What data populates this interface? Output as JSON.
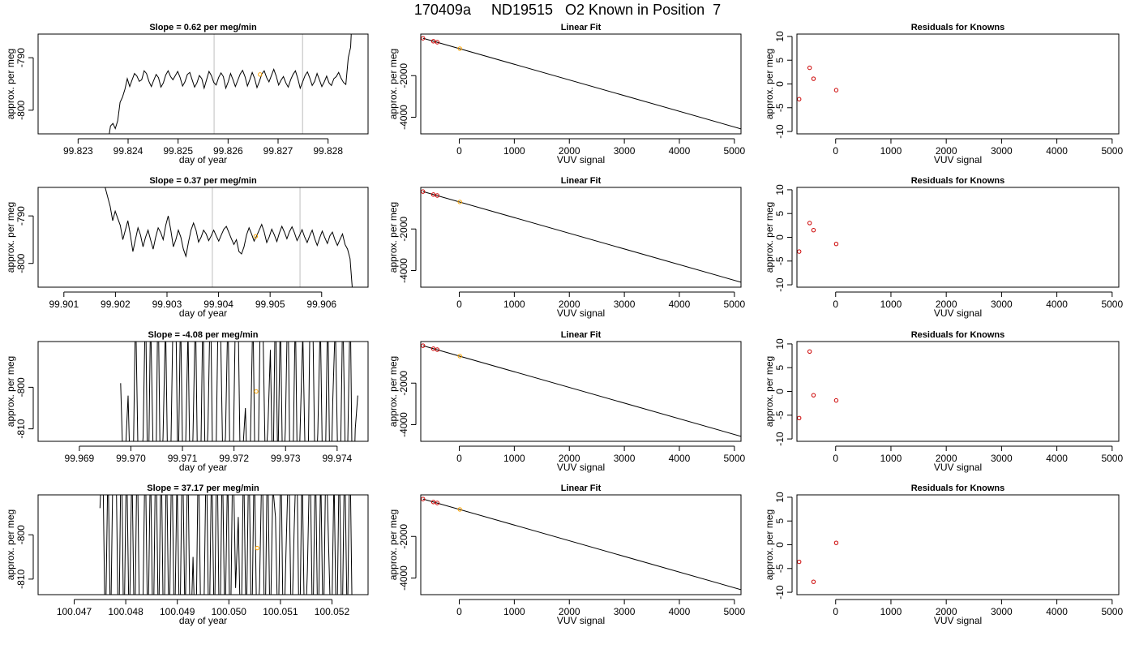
{
  "figure_title": "170409a     ND19515   O2 Known in Position  7",
  "colors": {
    "line": "#000000",
    "known_point": "#cc0000",
    "sample_point": "#ffa500",
    "vline": "#bebebe"
  },
  "chart_data": [
    {
      "type": "line",
      "row": 0,
      "title": "Slope =  0.62  per meg/min",
      "xlabel": "day of year",
      "ylabel": "approx. per meg",
      "xlim": [
        99.8222,
        99.8288
      ],
      "ylim": [
        -804.5,
        -785.5
      ],
      "xticks": [
        99.823,
        99.824,
        99.825,
        99.826,
        99.827,
        99.828
      ],
      "xticklabels": [
        "99.823",
        "99.824",
        "99.825",
        "99.826",
        "99.827",
        "99.828"
      ],
      "yticks": [
        -800,
        -790
      ],
      "yticklabels": [
        "-800",
        "-790"
      ],
      "vlines": [
        99.82572,
        99.82749
      ],
      "x_start": 99.8236,
      "x_end": 99.8285,
      "trace": [
        -806,
        -803,
        -802.5,
        -803.5,
        -802,
        -798.5,
        -797.5,
        -796,
        -794,
        -795.5,
        -794.2,
        -793,
        -793.5,
        -794.5,
        -794.2,
        -792.5,
        -793,
        -794.5,
        -795.5,
        -794.3,
        -793.2,
        -793.8,
        -795.6,
        -794.8,
        -793.3,
        -792.5,
        -793.6,
        -794.2,
        -793.4,
        -792.6,
        -793.8,
        -795.4,
        -794.6,
        -793.2,
        -792.8,
        -794.2,
        -795.6,
        -794.8,
        -793.4,
        -794,
        -795.8,
        -794.2,
        -792.6,
        -793.4,
        -794.7,
        -795.2,
        -793.8,
        -792.9,
        -793.6,
        -795.8,
        -794.6,
        -793,
        -794.2,
        -795.5,
        -794.3,
        -793.1,
        -792.4,
        -793.6,
        -795.4,
        -794.2,
        -792.8,
        -793.9,
        -795.7,
        -794.5,
        -793.1,
        -792.5,
        -793.8,
        -794.6,
        -793.4,
        -792.2,
        -793.5,
        -795.2,
        -794.3,
        -793.6,
        -794.8,
        -795.6,
        -794.2,
        -793.2,
        -792.5,
        -794,
        -795.8,
        -794.6,
        -793.4,
        -792.7,
        -793.9,
        -795.3,
        -794.5,
        -793,
        -794.2,
        -795.5,
        -794.6,
        -793.5,
        -794.8,
        -795.3,
        -794,
        -793.6,
        -792.8,
        -793.9,
        -794.7,
        -795.1,
        -790,
        -788,
        -778
      ],
      "samples": [
        {
          "x": 99.82664,
          "y": -793.2
        }
      ]
    },
    {
      "type": "scatter",
      "row": 0,
      "title": "Linear Fit",
      "xlabel": "VUV signal",
      "ylabel": "approx. per meg",
      "xlim": [
        -700,
        5120
      ],
      "ylim": [
        -4800,
        0
      ],
      "xticks": [
        0,
        1000,
        2000,
        3000,
        4000,
        5000
      ],
      "xticklabels": [
        "0",
        "1000",
        "2000",
        "3000",
        "4000",
        "5000"
      ],
      "yticks": [
        -4000,
        -2000
      ],
      "yticklabels": [
        "-4000",
        "-2000"
      ],
      "fit_line": [
        [
          -660,
          -200
        ],
        [
          5120,
          -4560
        ]
      ],
      "knowns": [
        {
          "x": -660,
          "y": -200
        },
        {
          "x": -470,
          "y": -345
        },
        {
          "x": -400,
          "y": -390
        }
      ],
      "samples": [
        {
          "x": 10,
          "y": -700
        }
      ]
    },
    {
      "type": "scatter",
      "row": 0,
      "title": "Residuals for Knowns",
      "xlabel": "VUV signal",
      "ylabel": "approx. per meg",
      "xlim": [
        -700,
        5120
      ],
      "ylim": [
        -10.5,
        10.5
      ],
      "xticks": [
        0,
        1000,
        2000,
        3000,
        4000,
        5000
      ],
      "xticklabels": [
        "0",
        "1000",
        "2000",
        "3000",
        "4000",
        "5000"
      ],
      "yticks": [
        -10,
        -5,
        0,
        5,
        10
      ],
      "yticklabels": [
        "-10",
        "-5",
        "0",
        "5",
        "10"
      ],
      "knowns": [
        {
          "x": -660,
          "y": -3.2
        },
        {
          "x": -470,
          "y": 3.4
        },
        {
          "x": -400,
          "y": 1.1
        },
        {
          "x": 10,
          "y": -1.3
        }
      ]
    },
    {
      "type": "line",
      "row": 1,
      "title": "Slope =  0.37  per meg/min",
      "xlabel": "day of year",
      "ylabel": "approx. per meg",
      "xlim": [
        99.9005,
        99.9069
      ],
      "ylim": [
        -805,
        -784
      ],
      "xticks": [
        99.901,
        99.902,
        99.903,
        99.904,
        99.905,
        99.906
      ],
      "xticklabels": [
        "99.901",
        "99.902",
        "99.903",
        "99.904",
        "99.905",
        "99.906"
      ],
      "yticks": [
        -800,
        -790
      ],
      "yticklabels": [
        "-800",
        "-790"
      ],
      "vlines": [
        99.90388,
        99.90558
      ],
      "x_start": 99.9018,
      "x_end": 99.9066,
      "trace": [
        -784,
        -786,
        -788,
        -791,
        -789,
        -790.5,
        -792,
        -795,
        -793,
        -791,
        -794,
        -797.5,
        -795,
        -792.5,
        -794,
        -796.5,
        -794.5,
        -793,
        -795,
        -797,
        -794.5,
        -792.5,
        -793.5,
        -795,
        -792,
        -790,
        -793,
        -796.5,
        -795,
        -793,
        -794.5,
        -797,
        -798.5,
        -795.5,
        -793,
        -791.5,
        -793,
        -795.5,
        -794.5,
        -793,
        -793.8,
        -795.2,
        -794.2,
        -793,
        -794.2,
        -795.3,
        -794,
        -792.8,
        -792.2,
        -793.5,
        -794.8,
        -796,
        -795,
        -797.5,
        -798,
        -796.5,
        -794,
        -792.5,
        -793.8,
        -795.3,
        -794.2,
        -793,
        -791.8,
        -793.4,
        -795.6,
        -794.4,
        -792.8,
        -794,
        -795.4,
        -793.6,
        -792.2,
        -793.4,
        -794.8,
        -793.3,
        -792.3,
        -793.6,
        -795.2,
        -794.1,
        -792.9,
        -794.4,
        -795.6,
        -794.2,
        -793,
        -794.8,
        -796.2,
        -794.6,
        -793.2,
        -794.6,
        -795.8,
        -794.2,
        -793.4,
        -795,
        -796.2,
        -795,
        -793.8,
        -796,
        -797,
        -799,
        -806
      ],
      "samples": [
        {
          "x": 99.90472,
          "y": -794.3
        }
      ]
    },
    {
      "type": "scatter",
      "row": 1,
      "title": "Linear Fit",
      "xlabel": "VUV signal",
      "ylabel": "approx. per meg",
      "xlim": [
        -700,
        5120
      ],
      "ylim": [
        -4800,
        0
      ],
      "xticks": [
        0,
        1000,
        2000,
        3000,
        4000,
        5000
      ],
      "xticklabels": [
        "0",
        "1000",
        "2000",
        "3000",
        "4000",
        "5000"
      ],
      "yticks": [
        -4000,
        -2000
      ],
      "yticklabels": [
        "-4000",
        "-2000"
      ],
      "fit_line": [
        [
          -660,
          -200
        ],
        [
          5120,
          -4560
        ]
      ],
      "knowns": [
        {
          "x": -660,
          "y": -200
        },
        {
          "x": -470,
          "y": -345
        },
        {
          "x": -400,
          "y": -390
        }
      ],
      "samples": [
        {
          "x": 10,
          "y": -700
        }
      ]
    },
    {
      "type": "scatter",
      "row": 1,
      "title": "Residuals for Knowns",
      "xlabel": "VUV signal",
      "ylabel": "approx. per meg",
      "xlim": [
        -700,
        5120
      ],
      "ylim": [
        -10.5,
        10.5
      ],
      "xticks": [
        0,
        1000,
        2000,
        3000,
        4000,
        5000
      ],
      "xticklabels": [
        "0",
        "1000",
        "2000",
        "3000",
        "4000",
        "5000"
      ],
      "yticks": [
        -10,
        -5,
        0,
        5,
        10
      ],
      "yticklabels": [
        "-10",
        "-5",
        "0",
        "5",
        "10"
      ],
      "knowns": [
        {
          "x": -660,
          "y": -3.0
        },
        {
          "x": -470,
          "y": 3.0
        },
        {
          "x": -400,
          "y": 1.5
        },
        {
          "x": 10,
          "y": -1.4
        }
      ]
    },
    {
      "type": "line",
      "row": 2,
      "title": "Slope =  -4.08  per meg/min",
      "xlabel": "day of year",
      "ylabel": "approx. per meg",
      "xlim": [
        99.9682,
        99.9746
      ],
      "ylim": [
        -813,
        -789
      ],
      "xticks": [
        99.969,
        99.97,
        99.971,
        99.972,
        99.973,
        99.974
      ],
      "xticklabels": [
        "99.969",
        "99.970",
        "99.971",
        "99.972",
        "99.973",
        "99.974"
      ],
      "yticks": [
        -810,
        -800
      ],
      "yticklabels": [
        "-810",
        "-800"
      ],
      "vlines": [],
      "x_start": 99.9698,
      "x_end": 99.9744,
      "trace": [
        -799,
        -819,
        -815,
        -802,
        -825,
        -822,
        -780,
        -817,
        -821,
        -812,
        -778,
        -831,
        -782,
        -815,
        -830,
        -775,
        -826,
        -812,
        -784,
        -826,
        -821,
        -783,
        -775,
        -825,
        -781,
        -823,
        -816,
        -786,
        -830,
        -812,
        -781,
        -828,
        -823,
        -779,
        -825,
        -810,
        -776,
        -826,
        -826,
        -785,
        -784,
        -820,
        -812,
        -781,
        -828,
        -822,
        -782,
        -779,
        -823,
        -815,
        -805,
        -827,
        -813,
        -781,
        -828,
        -824,
        -780,
        -785,
        -819,
        -810,
        -791,
        -826,
        -777,
        -821,
        -782,
        -825,
        -810,
        -776,
        -829,
        -821,
        -781,
        -831,
        -808,
        -787,
        -819,
        -825,
        -776,
        -784,
        -826,
        -811,
        -783,
        -825,
        -820,
        -779,
        -831,
        -803,
        -784,
        -818,
        -822,
        -780,
        -817,
        -813,
        -779,
        -833,
        -810,
        -802
      ],
      "samples": [
        {
          "x": 99.97243,
          "y": -801
        }
      ]
    },
    {
      "type": "scatter",
      "row": 2,
      "title": "Linear Fit",
      "xlabel": "VUV signal",
      "ylabel": "approx. per meg",
      "xlim": [
        -700,
        5120
      ],
      "ylim": [
        -4800,
        0
      ],
      "xticks": [
        0,
        1000,
        2000,
        3000,
        4000,
        5000
      ],
      "xticklabels": [
        "0",
        "1000",
        "2000",
        "3000",
        "4000",
        "5000"
      ],
      "yticks": [
        -4000,
        -2000
      ],
      "yticklabels": [
        "-4000",
        "-2000"
      ],
      "fit_line": [
        [
          -660,
          -200
        ],
        [
          5120,
          -4560
        ]
      ],
      "knowns": [
        {
          "x": -660,
          "y": -200
        },
        {
          "x": -470,
          "y": -345
        },
        {
          "x": -400,
          "y": -390
        }
      ],
      "samples": [
        {
          "x": 10,
          "y": -700
        }
      ]
    },
    {
      "type": "scatter",
      "row": 2,
      "title": "Residuals for Knowns",
      "xlabel": "VUV signal",
      "ylabel": "approx. per meg",
      "xlim": [
        -700,
        5120
      ],
      "ylim": [
        -10.5,
        10.5
      ],
      "xticks": [
        0,
        1000,
        2000,
        3000,
        4000,
        5000
      ],
      "xticklabels": [
        "0",
        "1000",
        "2000",
        "3000",
        "4000",
        "5000"
      ],
      "yticks": [
        -10,
        -5,
        0,
        5,
        10
      ],
      "yticklabels": [
        "-10",
        "-5",
        "0",
        "5",
        "10"
      ],
      "knowns": [
        {
          "x": -660,
          "y": -5.6
        },
        {
          "x": -470,
          "y": 8.4
        },
        {
          "x": -400,
          "y": -0.8
        },
        {
          "x": 10,
          "y": -1.9
        }
      ]
    },
    {
      "type": "line",
      "row": 3,
      "title": "Slope =  37.17  per meg/min",
      "xlabel": "day of year",
      "ylabel": "approx. per meg",
      "xlim": [
        100.0463,
        100.0527
      ],
      "ylim": [
        -813.5,
        -791
      ],
      "xticks": [
        100.047,
        100.048,
        100.049,
        100.05,
        100.051,
        100.052
      ],
      "xticklabels": [
        "100.047",
        "100.048",
        "100.049",
        "100.050",
        "100.051",
        "100.052"
      ],
      "yticks": [
        -810,
        -800
      ],
      "yticklabels": [
        "-810",
        "-800"
      ],
      "vlines": [],
      "x_start": 100.0475,
      "x_end": 100.0524,
      "trace": [
        -794,
        -780,
        -825,
        -783,
        -823,
        -779,
        -781,
        -828,
        -776,
        -826,
        -780,
        -824,
        -783,
        -827,
        -778,
        -826,
        -823,
        -779,
        -826,
        -782,
        -828,
        -776,
        -824,
        -780,
        -829,
        -781,
        -826,
        -779,
        -825,
        -786,
        -826,
        -778,
        -821,
        -781,
        -826,
        -805,
        -829,
        -779,
        -825,
        -822,
        -779,
        -828,
        -781,
        -824,
        -776,
        -830,
        -781,
        -823,
        -784,
        -828,
        -778,
        -812,
        -796,
        -828,
        -781,
        -824,
        -779,
        -827,
        -781,
        -823,
        -812,
        -780,
        -828,
        -778,
        -825,
        -789,
        -796,
        -826,
        -779,
        -827,
        -803,
        -781,
        -825,
        -799,
        -779,
        -829,
        -783,
        -826,
        -808,
        -779,
        -826,
        -781,
        -827,
        -785,
        -826,
        -779,
        -803,
        -826,
        -786,
        -828,
        -781,
        -826,
        -780,
        -823,
        -779,
        -826
      ],
      "samples": [
        {
          "x": 100.05055,
          "y": -803
        }
      ]
    },
    {
      "type": "scatter",
      "row": 3,
      "title": "Linear Fit",
      "xlabel": "VUV signal",
      "ylabel": "approx. per meg",
      "xlim": [
        -700,
        5120
      ],
      "ylim": [
        -4800,
        0
      ],
      "xticks": [
        0,
        1000,
        2000,
        3000,
        4000,
        5000
      ],
      "xticklabels": [
        "0",
        "1000",
        "2000",
        "3000",
        "4000",
        "5000"
      ],
      "yticks": [
        -4000,
        -2000
      ],
      "yticklabels": [
        "-4000",
        "-2000"
      ],
      "fit_line": [
        [
          -660,
          -200
        ],
        [
          5120,
          -4560
        ]
      ],
      "knowns": [
        {
          "x": -660,
          "y": -200
        },
        {
          "x": -470,
          "y": -345
        },
        {
          "x": -400,
          "y": -390
        }
      ],
      "samples": [
        {
          "x": 10,
          "y": -700
        }
      ]
    },
    {
      "type": "scatter",
      "row": 3,
      "title": "Residuals for Knowns",
      "xlabel": "VUV signal",
      "ylabel": "approx. per meg",
      "xlim": [
        -700,
        5120
      ],
      "ylim": [
        -10.5,
        10.5
      ],
      "xticks": [
        0,
        1000,
        2000,
        3000,
        4000,
        5000
      ],
      "xticklabels": [
        "0",
        "1000",
        "2000",
        "3000",
        "4000",
        "5000"
      ],
      "yticks": [
        -10,
        -5,
        0,
        5,
        10
      ],
      "yticklabels": [
        "-10",
        "-5",
        "0",
        "5",
        "10"
      ],
      "knowns": [
        {
          "x": -660,
          "y": -3.6
        },
        {
          "x": -400,
          "y": -7.8
        },
        {
          "x": 10,
          "y": 0.4
        }
      ]
    }
  ]
}
